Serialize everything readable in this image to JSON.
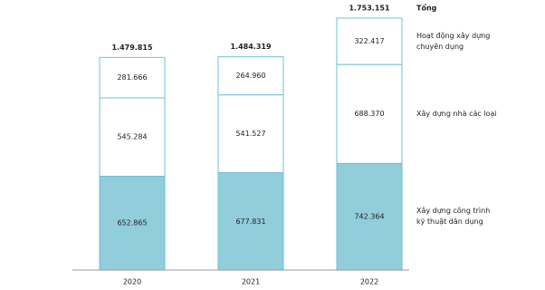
{
  "chart_data": {
    "type": "stacked-bar",
    "categories": [
      "2020",
      "2021",
      "2022"
    ],
    "series": [
      {
        "name": "Xây dựng công trình kỹ thuật dân dụng",
        "color": "#92cddc",
        "values": [
          652865,
          677831,
          742364
        ],
        "value_labels": [
          "652.865",
          "677.831",
          "742.364"
        ]
      },
      {
        "name": "Xây dựng nhà các loại",
        "color": "#ffffff",
        "values": [
          545284,
          541527,
          688370
        ],
        "value_labels": [
          "545.284",
          "541.527",
          "688.370"
        ]
      },
      {
        "name": "Hoạt động xây dựng chuyên dụng",
        "color": "#ffffff",
        "values": [
          281666,
          264960,
          322417
        ],
        "value_labels": [
          "281.666",
          "264.960",
          "322.417"
        ]
      }
    ],
    "total_title": "Tổng",
    "totals": [
      1479815,
      1484319,
      1753151
    ],
    "total_labels": [
      "1.479.815",
      "1.484.319",
      "1.753.151"
    ],
    "border_color": "#6cc0d8"
  }
}
